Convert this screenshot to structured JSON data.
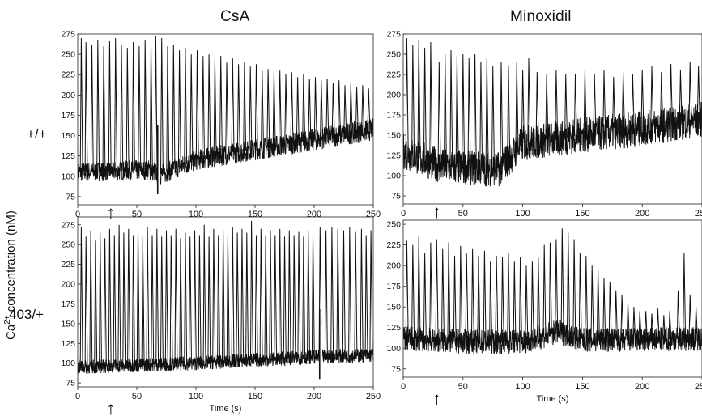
{
  "figure": {
    "column_titles": [
      "CsA",
      "Minoxidil"
    ],
    "row_labels": [
      "+/+",
      "403/+"
    ],
    "y_axis_title": "Ca2+ concentration (nM)",
    "y_axis_title_parts": {
      "before": "Ca",
      "superscript": "2+",
      "after": " concentration (nM)"
    },
    "x_axis_title": "Time (s)",
    "trace_color": "#111111",
    "arrow_glyph": "↑"
  },
  "chart_data": [
    {
      "type": "line",
      "panel": "CsA +/+",
      "xlim": [
        0,
        250
      ],
      "ylim": [
        65,
        275
      ],
      "x_ticks": [
        0,
        50,
        100,
        150,
        200,
        250
      ],
      "y_ticks": [
        75,
        100,
        125,
        150,
        175,
        200,
        225,
        250,
        275
      ],
      "arrow_at": 28,
      "x_axis_label": "",
      "series": [
        {
          "baseline": [
            [
              0,
              105
            ],
            [
              60,
              108
            ],
            [
              70,
              102
            ],
            [
              100,
              120
            ],
            [
              150,
              133
            ],
            [
              200,
              145
            ],
            [
              250,
              158
            ]
          ],
          "spread": [
            [
              0,
              12
            ],
            [
              250,
              14
            ]
          ],
          "spikes": [
            [
              3,
              270
            ],
            [
              7,
              265
            ],
            [
              12,
              262
            ],
            [
              17,
              268
            ],
            [
              22,
              260
            ],
            [
              27,
              266
            ],
            [
              32,
              270
            ],
            [
              37,
              262
            ],
            [
              42,
              258
            ],
            [
              47,
              265
            ],
            [
              52,
              260
            ],
            [
              57,
              268
            ],
            [
              62,
              262
            ],
            [
              66,
              272
            ],
            [
              71,
              270
            ],
            [
              76,
              260
            ],
            [
              81,
              262
            ],
            [
              86,
              255
            ],
            [
              91,
              258
            ],
            [
              96,
              250
            ],
            [
              101,
              255
            ],
            [
              106,
              248
            ],
            [
              111,
              250
            ],
            [
              116,
              245
            ],
            [
              121,
              248
            ],
            [
              126,
              240
            ],
            [
              131,
              245
            ],
            [
              136,
              238
            ],
            [
              141,
              240
            ],
            [
              146,
              235
            ],
            [
              151,
              238
            ],
            [
              156,
              230
            ],
            [
              161,
              232
            ],
            [
              166,
              228
            ],
            [
              171,
              230
            ],
            [
              176,
              226
            ],
            [
              181,
              228
            ],
            [
              186,
              222
            ],
            [
              191,
              226
            ],
            [
              196,
              220
            ],
            [
              201,
              222
            ],
            [
              206,
              218
            ],
            [
              211,
              220
            ],
            [
              216,
              215
            ],
            [
              221,
              218
            ],
            [
              226,
              212
            ],
            [
              231,
              215
            ],
            [
              236,
              210
            ],
            [
              241,
              212
            ],
            [
              246,
              208
            ]
          ],
          "dips": [
            [
              69,
              78
            ]
          ]
        }
      ]
    },
    {
      "type": "line",
      "panel": "Minoxidil +/+",
      "xlim": [
        0,
        250
      ],
      "ylim": [
        65,
        275
      ],
      "x_ticks": [
        0,
        50,
        100,
        150,
        200,
        250
      ],
      "y_ticks": [
        75,
        100,
        125,
        150,
        175,
        200,
        225,
        250,
        275
      ],
      "arrow_at": 28,
      "x_axis_label": "",
      "series": [
        {
          "baseline": [
            [
              0,
              130
            ],
            [
              30,
              112
            ],
            [
              50,
              110
            ],
            [
              80,
              108
            ],
            [
              100,
              140
            ],
            [
              150,
              150
            ],
            [
              200,
              158
            ],
            [
              250,
              170
            ]
          ],
          "spread": [
            [
              0,
              22
            ],
            [
              250,
              22
            ]
          ],
          "spikes": [
            [
              3,
              270
            ],
            [
              8,
              262
            ],
            [
              13,
              268
            ],
            [
              18,
              258
            ],
            [
              23,
              265
            ],
            [
              30,
              240
            ],
            [
              35,
              250
            ],
            [
              40,
              255
            ],
            [
              45,
              248
            ],
            [
              50,
              250
            ],
            [
              55,
              245
            ],
            [
              60,
              250
            ],
            [
              65,
              240
            ],
            [
              70,
              245
            ],
            [
              75,
              235
            ],
            [
              82,
              240
            ],
            [
              88,
              235
            ],
            [
              95,
              240
            ],
            [
              100,
              230
            ],
            [
              105,
              245
            ],
            [
              112,
              228
            ],
            [
              120,
              225
            ],
            [
              128,
              230
            ],
            [
              136,
              225
            ],
            [
              144,
              225
            ],
            [
              152,
              230
            ],
            [
              160,
              225
            ],
            [
              168,
              230
            ],
            [
              176,
              222
            ],
            [
              184,
              228
            ],
            [
              192,
              225
            ],
            [
              200,
              230
            ],
            [
              208,
              235
            ],
            [
              216,
              228
            ],
            [
              224,
              238
            ],
            [
              232,
              230
            ],
            [
              240,
              240
            ],
            [
              247,
              235
            ]
          ],
          "dips": []
        }
      ]
    },
    {
      "type": "line",
      "panel": "CsA 403/+",
      "xlim": [
        0,
        250
      ],
      "ylim": [
        70,
        285
      ],
      "x_ticks": [
        0,
        50,
        100,
        150,
        200,
        250
      ],
      "y_ticks": [
        75,
        100,
        125,
        150,
        175,
        200,
        225,
        250,
        275
      ],
      "arrow_at": 28,
      "x_axis_label": "Time (s)",
      "series": [
        {
          "baseline": [
            [
              0,
              95
            ],
            [
              100,
              100
            ],
            [
              200,
              108
            ],
            [
              250,
              110
            ]
          ],
          "spread": [
            [
              0,
              9
            ],
            [
              250,
              9
            ]
          ],
          "spikes": [
            [
              3,
              272
            ],
            [
              7,
              260
            ],
            [
              11,
              268
            ],
            [
              15,
              255
            ],
            [
              19,
              265
            ],
            [
              23,
              258
            ],
            [
              27,
              270
            ],
            [
              31,
              262
            ],
            [
              35,
              275
            ],
            [
              39,
              265
            ],
            [
              43,
              270
            ],
            [
              47,
              262
            ],
            [
              51,
              268
            ],
            [
              55,
              260
            ],
            [
              59,
              272
            ],
            [
              63,
              262
            ],
            [
              67,
              270
            ],
            [
              71,
              260
            ],
            [
              75,
              268
            ],
            [
              79,
              262
            ],
            [
              83,
              270
            ],
            [
              87,
              258
            ],
            [
              91,
              265
            ],
            [
              95,
              260
            ],
            [
              99,
              268
            ],
            [
              103,
              262
            ],
            [
              107,
              275
            ],
            [
              111,
              260
            ],
            [
              115,
              270
            ],
            [
              119,
              262
            ],
            [
              123,
              268
            ],
            [
              127,
              262
            ],
            [
              131,
              272
            ],
            [
              135,
              265
            ],
            [
              139,
              270
            ],
            [
              143,
              265
            ],
            [
              147,
              280
            ],
            [
              151,
              262
            ],
            [
              155,
              270
            ],
            [
              159,
              262
            ],
            [
              163,
              268
            ],
            [
              167,
              262
            ],
            [
              171,
              270
            ],
            [
              175,
              260
            ],
            [
              179,
              268
            ],
            [
              183,
              262
            ],
            [
              187,
              266
            ],
            [
              191,
              260
            ],
            [
              195,
              268
            ],
            [
              199,
              262
            ],
            [
              205,
              272
            ],
            [
              210,
              268
            ],
            [
              215,
              272
            ],
            [
              220,
              270
            ],
            [
              225,
              268
            ],
            [
              230,
              272
            ],
            [
              235,
              266
            ],
            [
              240,
              270
            ],
            [
              244,
              262
            ],
            [
              248,
              268
            ]
          ],
          "dips": [
            [
              206,
              80
            ]
          ]
        }
      ]
    },
    {
      "type": "line",
      "panel": "Minoxidil 403/+",
      "xlim": [
        0,
        250
      ],
      "ylim": [
        65,
        255
      ],
      "x_ticks": [
        0,
        50,
        100,
        150,
        200,
        250
      ],
      "y_ticks": [
        75,
        100,
        125,
        150,
        175,
        200,
        225,
        250
      ],
      "arrow_at": 28,
      "x_axis_label": "Time (s)",
      "series": [
        {
          "baseline": [
            [
              0,
              112
            ],
            [
              50,
              108
            ],
            [
              100,
              108
            ],
            [
              130,
              120
            ],
            [
              150,
              110
            ],
            [
              200,
              110
            ],
            [
              250,
              112
            ]
          ],
          "spread": [
            [
              0,
              15
            ],
            [
              250,
              15
            ]
          ],
          "spikes": [
            [
              3,
              230
            ],
            [
              8,
              225
            ],
            [
              13,
              235
            ],
            [
              18,
              215
            ],
            [
              23,
              228
            ],
            [
              28,
              232
            ],
            [
              33,
              220
            ],
            [
              38,
              228
            ],
            [
              43,
              212
            ],
            [
              48,
              224
            ],
            [
              53,
              215
            ],
            [
              58,
              220
            ],
            [
              63,
              212
            ],
            [
              68,
              218
            ],
            [
              73,
              205
            ],
            [
              78,
              212
            ],
            [
              83,
              210
            ],
            [
              88,
              215
            ],
            [
              93,
              205
            ],
            [
              98,
              210
            ],
            [
              103,
              200
            ],
            [
              108,
              205
            ],
            [
              113,
              210
            ],
            [
              118,
              225
            ],
            [
              123,
              228
            ],
            [
              128,
              232
            ],
            [
              133,
              245
            ],
            [
              138,
              240
            ],
            [
              143,
              232
            ],
            [
              148,
              215
            ],
            [
              153,
              212
            ],
            [
              158,
              200
            ],
            [
              163,
              195
            ],
            [
              168,
              185
            ],
            [
              173,
              180
            ],
            [
              178,
              170
            ],
            [
              183,
              165
            ],
            [
              188,
              155
            ],
            [
              193,
              150
            ],
            [
              198,
              145
            ],
            [
              203,
              145
            ],
            [
              208,
              142
            ],
            [
              213,
              148
            ],
            [
              218,
              140
            ],
            [
              223,
              145
            ],
            [
              230,
              170
            ],
            [
              235,
              215
            ],
            [
              240,
              165
            ],
            [
              245,
              150
            ]
          ],
          "dips": []
        }
      ]
    }
  ]
}
